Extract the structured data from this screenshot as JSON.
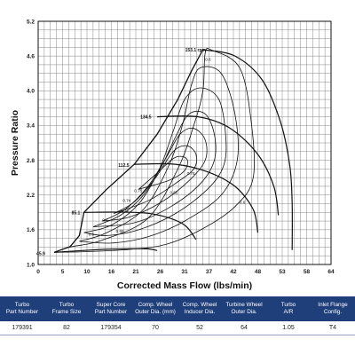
{
  "chart_data": {
    "type": "line",
    "title": "",
    "xlabel": "Corrected Mass Flow (lbs/min)",
    "ylabel": "Pressure Ratio",
    "xlim": [
      0,
      64
    ],
    "ylim": [
      1.0,
      5.2
    ],
    "x_ticks": [
      "0",
      "5",
      "10",
      "16",
      "21",
      "26",
      "31",
      "37",
      "42",
      "48",
      "53",
      "58",
      "64"
    ],
    "y_ticks": [
      "1.0",
      "1.6",
      "2.2",
      "2.8",
      "3.4",
      "4.0",
      "4.6",
      "5.2"
    ],
    "grid": true,
    "surge_line": [
      [
        3.5,
        1.21
      ],
      [
        7.0,
        1.31
      ],
      [
        9.0,
        1.5
      ],
      [
        10.0,
        1.9
      ],
      [
        15.0,
        2.3
      ],
      [
        21.0,
        2.73
      ],
      [
        26.0,
        3.25
      ],
      [
        30.5,
        3.85
      ],
      [
        33.5,
        4.34
      ],
      [
        36.0,
        4.71
      ]
    ],
    "speed_lines": [
      {
        "label": "45.9",
        "points": [
          [
            3.5,
            1.21
          ],
          [
            14.0,
            1.26
          ],
          [
            20.0,
            1.27
          ],
          [
            24.0,
            1.27
          ],
          [
            26.0,
            1.24
          ]
        ]
      },
      {
        "label": "85.1",
        "points": [
          [
            10.0,
            1.9
          ],
          [
            21.0,
            1.9
          ],
          [
            27.0,
            1.84
          ],
          [
            32.0,
            1.68
          ],
          [
            34.5,
            1.43
          ]
        ]
      },
      {
        "label": "112.5",
        "points": [
          [
            21.0,
            2.73
          ],
          [
            30.0,
            2.73
          ],
          [
            37.0,
            2.6
          ],
          [
            43.0,
            2.35
          ],
          [
            47.0,
            1.95
          ],
          [
            48.0,
            1.55
          ]
        ]
      },
      {
        "label": "134.5",
        "points": [
          [
            26.0,
            3.55
          ],
          [
            35.0,
            3.55
          ],
          [
            42.0,
            3.35
          ],
          [
            48.0,
            2.9
          ],
          [
            51.5,
            2.35
          ],
          [
            52.5,
            1.85
          ]
        ]
      },
      {
        "label": "153.1 rpm",
        "points": [
          [
            36.0,
            4.71
          ],
          [
            43.0,
            4.6
          ],
          [
            49.0,
            4.18
          ],
          [
            53.0,
            3.45
          ],
          [
            55.0,
            2.7
          ],
          [
            55.5,
            2.05
          ],
          [
            55.5,
            1.25
          ]
        ]
      }
    ],
    "efficiency_islands": [
      {
        "label": "0.6",
        "points": [
          [
            3.5,
            1.21
          ],
          [
            7.0,
            1.3
          ],
          [
            14.0,
            1.42
          ],
          [
            24.0,
            1.8
          ],
          [
            30.5,
            2.65
          ],
          [
            34.0,
            3.4
          ],
          [
            36.0,
            4.0
          ],
          [
            36.5,
            4.65
          ],
          [
            38.0,
            4.7
          ],
          [
            44.0,
            4.4
          ],
          [
            46.5,
            3.5
          ],
          [
            47.0,
            2.5
          ],
          [
            43.0,
            2.0
          ],
          [
            36.0,
            1.62
          ],
          [
            28.0,
            1.35
          ],
          [
            20.0,
            1.26
          ],
          [
            10.0,
            1.22
          ],
          [
            3.5,
            1.21
          ]
        ]
      },
      {
        "label": "0.65",
        "points": [
          [
            9.0,
            1.4
          ],
          [
            15.0,
            1.55
          ],
          [
            23.0,
            1.95
          ],
          [
            28.5,
            2.7
          ],
          [
            31.5,
            3.4
          ],
          [
            33.5,
            4.1
          ],
          [
            35.5,
            4.4
          ],
          [
            40.0,
            4.3
          ],
          [
            43.0,
            3.6
          ],
          [
            43.5,
            2.8
          ],
          [
            40.0,
            2.2
          ],
          [
            32.0,
            1.75
          ],
          [
            24.0,
            1.48
          ],
          [
            16.0,
            1.37
          ],
          [
            9.0,
            1.4
          ]
        ]
      },
      {
        "label": "0.7",
        "points": [
          [
            10.0,
            1.55
          ],
          [
            16.0,
            1.68
          ],
          [
            22.0,
            2.05
          ],
          [
            26.5,
            2.65
          ],
          [
            29.5,
            3.3
          ],
          [
            32.0,
            3.85
          ],
          [
            35.5,
            4.05
          ],
          [
            39.5,
            3.85
          ],
          [
            41.0,
            3.2
          ],
          [
            40.5,
            2.7
          ],
          [
            37.0,
            2.3
          ],
          [
            30.0,
            1.88
          ],
          [
            22.0,
            1.6
          ],
          [
            15.0,
            1.5
          ],
          [
            10.0,
            1.55
          ]
        ]
      },
      {
        "label": "0.72",
        "points": [
          [
            12.0,
            1.65
          ],
          [
            18.0,
            1.85
          ],
          [
            23.0,
            2.2
          ],
          [
            27.0,
            2.7
          ],
          [
            30.0,
            3.2
          ],
          [
            33.0,
            3.6
          ],
          [
            36.5,
            3.6
          ],
          [
            38.5,
            3.25
          ],
          [
            38.5,
            2.8
          ],
          [
            35.5,
            2.4
          ],
          [
            29.0,
            2.0
          ],
          [
            21.0,
            1.72
          ],
          [
            12.0,
            1.65
          ]
        ]
      },
      {
        "label": "0.74",
        "points": [
          [
            14.0,
            1.75
          ],
          [
            19.0,
            1.95
          ],
          [
            24.0,
            2.35
          ],
          [
            28.0,
            2.85
          ],
          [
            31.0,
            3.25
          ],
          [
            34.0,
            3.35
          ],
          [
            36.5,
            3.15
          ],
          [
            36.5,
            2.8
          ],
          [
            33.0,
            2.45
          ],
          [
            27.0,
            2.08
          ],
          [
            20.0,
            1.82
          ],
          [
            14.0,
            1.75
          ]
        ]
      },
      {
        "label": "0.75",
        "points": [
          [
            16.5,
            1.88
          ],
          [
            21.0,
            2.08
          ],
          [
            25.5,
            2.48
          ],
          [
            29.5,
            2.95
          ],
          [
            32.5,
            3.05
          ],
          [
            34.5,
            2.9
          ],
          [
            34.0,
            2.65
          ],
          [
            30.0,
            2.4
          ],
          [
            24.0,
            2.1
          ],
          [
            16.5,
            1.88
          ]
        ]
      },
      {
        "label": "0.76",
        "points": [
          [
            22.0,
            2.3
          ],
          [
            26.0,
            2.58
          ],
          [
            30.0,
            2.85
          ],
          [
            32.5,
            2.82
          ],
          [
            32.0,
            2.62
          ],
          [
            28.5,
            2.45
          ],
          [
            22.0,
            2.3
          ]
        ]
      }
    ],
    "annotations": [
      "0.6",
      "0.65",
      "0.7",
      "0.72",
      "0.74",
      "0.75",
      "0.76",
      "0.6",
      "0.65",
      "0.6"
    ]
  },
  "specs": {
    "headers": [
      [
        "Turbo",
        "Part Number"
      ],
      [
        "Turbo",
        "Frame Size"
      ],
      [
        "Super Core",
        "Part Number"
      ],
      [
        "Comp. Wheel",
        "Outer Dia. (mm)"
      ],
      [
        "Comp. Wheel",
        "Inducer Dia."
      ],
      [
        "Turbine Wheel",
        "Outer Dia."
      ],
      [
        "Turbo",
        "A/R"
      ],
      [
        "Inlet Flange",
        "Config."
      ]
    ],
    "row": [
      "179391",
      "82",
      "179354",
      "70",
      "52",
      "64",
      "1.05",
      "T4"
    ]
  }
}
